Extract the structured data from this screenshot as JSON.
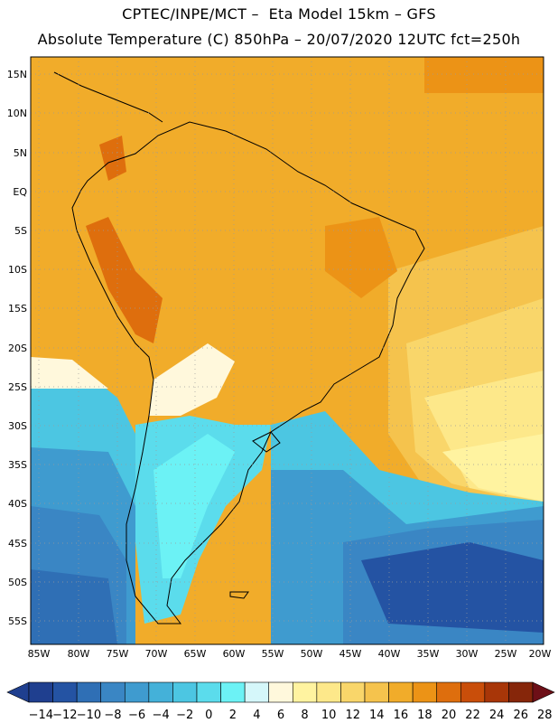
{
  "header": {
    "line1": "CPTEC/INPE/MCT –  Eta Model 15km – GFS",
    "line2": "Absolute Temperature (C) 850hPa – 20/07/2020 12UTC fct=250h"
  },
  "map": {
    "lon_labels": [
      "85W",
      "80W",
      "75W",
      "70W",
      "65W",
      "60W",
      "55W",
      "50W",
      "45W",
      "40W",
      "35W",
      "30W",
      "25W",
      "20W"
    ],
    "lat_labels": [
      "15N",
      "10N",
      "5N",
      "EQ",
      "5S",
      "10S",
      "15S",
      "20S",
      "25S",
      "30S",
      "35S",
      "40S",
      "45S",
      "50S",
      "55S"
    ],
    "lon_range": [
      -85,
      -20
    ],
    "lat_range": [
      -57.5,
      17
    ]
  },
  "colorbar": {
    "labels": [
      "−14",
      "−12",
      "−10",
      "−8",
      "−6",
      "−4",
      "−2",
      "0",
      "2",
      "4",
      "6",
      "8",
      "10",
      "12",
      "14",
      "16",
      "18",
      "20",
      "22",
      "24",
      "26",
      "28"
    ],
    "colors": [
      "#1f3f8f",
      "#2453a3",
      "#2f6fb5",
      "#3a86c4",
      "#3f9bcf",
      "#44b1d9",
      "#4cc6e2",
      "#5bdcec",
      "#6cf2f5",
      "#d5f7fa",
      "#fff8dc",
      "#fff3a0",
      "#fde88a",
      "#f9d66a",
      "#f5c34d",
      "#f1ac2a",
      "#ec9316",
      "#de6e0d",
      "#c94e0a",
      "#a83608",
      "#86260a"
    ]
  }
}
